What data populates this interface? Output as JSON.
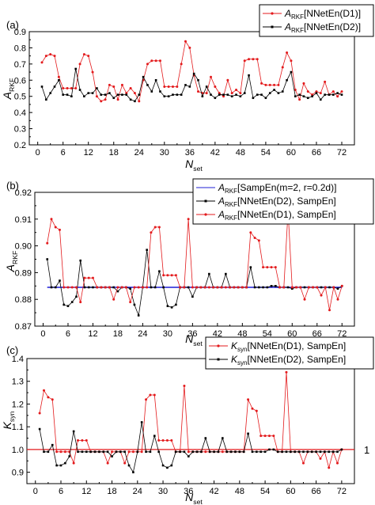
{
  "figure": {
    "panels": [
      {
        "id": "a",
        "panel_label": "(a)",
        "ylabel_main": "A",
        "ylabel_sub": "RKF",
        "xlabel_main": "N",
        "xlabel_sub": "set"
      },
      {
        "id": "b",
        "panel_label": "(b)",
        "ylabel_main": "A",
        "ylabel_sub": "RKF",
        "xlabel_main": "N",
        "xlabel_sub": "set"
      },
      {
        "id": "c",
        "panel_label": "(c)",
        "ylabel_main": "K",
        "ylabel_sub": "syn",
        "xlabel_main": "N",
        "xlabel_sub": "set",
        "ref_label": "1"
      }
    ],
    "colors": {
      "red": "#e31a1c",
      "black": "#000000",
      "blue": "#1f1fd6"
    }
  },
  "chart_data": [
    {
      "type": "line",
      "title": "(a)",
      "xlabel": "N_set",
      "ylabel": "A_RKF",
      "xlim": [
        -2,
        75
      ],
      "ylim": [
        0.2,
        0.9
      ],
      "xticks": [
        0,
        6,
        12,
        18,
        24,
        30,
        36,
        42,
        48,
        54,
        60,
        66,
        72
      ],
      "yticks": [
        0.2,
        0.3,
        0.4,
        0.5,
        0.6,
        0.7,
        0.8,
        0.9
      ],
      "legend_position": "top-right",
      "x": [
        1,
        2,
        3,
        4,
        5,
        6,
        7,
        8,
        9,
        10,
        11,
        12,
        13,
        14,
        15,
        16,
        17,
        18,
        19,
        20,
        21,
        22,
        23,
        24,
        25,
        26,
        27,
        28,
        29,
        30,
        31,
        32,
        33,
        34,
        35,
        36,
        37,
        38,
        39,
        40,
        41,
        42,
        43,
        44,
        45,
        46,
        47,
        48,
        49,
        50,
        51,
        52,
        53,
        54,
        55,
        56,
        57,
        58,
        59,
        60,
        61,
        62,
        63,
        64,
        65,
        66,
        67,
        68,
        69,
        70,
        71,
        72
      ],
      "series": [
        {
          "name": "A_RKF[NNetEn(D1)]",
          "color": "red",
          "marker": "dot",
          "values": [
            0.71,
            0.75,
            0.76,
            0.75,
            0.62,
            0.55,
            0.55,
            0.55,
            0.55,
            0.7,
            0.76,
            0.75,
            0.65,
            0.5,
            0.47,
            0.48,
            0.57,
            0.56,
            0.48,
            0.57,
            0.52,
            0.55,
            0.52,
            0.47,
            0.6,
            0.7,
            0.72,
            0.72,
            0.72,
            0.56,
            0.56,
            0.56,
            0.56,
            0.7,
            0.84,
            0.8,
            0.63,
            0.53,
            0.52,
            0.52,
            0.62,
            0.56,
            0.52,
            0.5,
            0.6,
            0.52,
            0.54,
            0.52,
            0.72,
            0.73,
            0.73,
            0.73,
            0.58,
            0.57,
            0.57,
            0.57,
            0.57,
            0.68,
            0.77,
            0.72,
            0.54,
            0.48,
            0.58,
            0.53,
            0.51,
            0.53,
            0.52,
            0.59,
            0.51,
            0.53,
            0.5,
            0.53
          ]
        },
        {
          "name": "A_RKF[NNetEn(D2)]",
          "color": "black",
          "marker": "square",
          "values": [
            0.56,
            0.48,
            0.52,
            0.56,
            0.6,
            0.51,
            0.51,
            0.5,
            0.67,
            0.54,
            0.5,
            0.52,
            0.52,
            0.55,
            0.51,
            0.51,
            0.52,
            0.49,
            0.51,
            0.51,
            0.51,
            0.48,
            0.47,
            0.51,
            0.62,
            0.57,
            0.53,
            0.6,
            0.53,
            0.5,
            0.5,
            0.51,
            0.51,
            0.51,
            0.57,
            0.56,
            0.64,
            0.6,
            0.5,
            0.56,
            0.51,
            0.49,
            0.51,
            0.51,
            0.51,
            0.5,
            0.51,
            0.5,
            0.52,
            0.63,
            0.49,
            0.51,
            0.51,
            0.49,
            0.52,
            0.54,
            0.52,
            0.53,
            0.6,
            0.65,
            0.5,
            0.51,
            0.5,
            0.49,
            0.5,
            0.52,
            0.48,
            0.51,
            0.51,
            0.51,
            0.52,
            0.51
          ]
        }
      ]
    },
    {
      "type": "line",
      "title": "(b)",
      "xlabel": "N_set",
      "ylabel": "A_RKF",
      "xlim": [
        -2,
        75
      ],
      "ylim": [
        0.87,
        0.92
      ],
      "xticks": [
        0,
        6,
        12,
        18,
        24,
        30,
        36,
        42,
        48,
        54,
        60,
        66,
        72
      ],
      "yticks": [
        0.87,
        0.88,
        0.89,
        0.9,
        0.91,
        0.92
      ],
      "legend_position": "top-right",
      "x": [
        1,
        2,
        3,
        4,
        5,
        6,
        7,
        8,
        9,
        10,
        11,
        12,
        13,
        14,
        15,
        16,
        17,
        18,
        19,
        20,
        21,
        22,
        23,
        24,
        25,
        26,
        27,
        28,
        29,
        30,
        31,
        32,
        33,
        34,
        35,
        36,
        37,
        38,
        39,
        40,
        41,
        42,
        43,
        44,
        45,
        46,
        47,
        48,
        49,
        50,
        51,
        52,
        53,
        54,
        55,
        56,
        57,
        58,
        59,
        60,
        61,
        62,
        63,
        64,
        65,
        66,
        67,
        68,
        69,
        70,
        71,
        72
      ],
      "series": [
        {
          "name": "A_RKF[SampEn(m=2, r=0.2d)]",
          "color": "blue",
          "marker": "none",
          "values": [
            0.8845,
            0.8845,
            0.8845,
            0.8845,
            0.8845,
            0.8845,
            0.8845,
            0.8845,
            0.8845,
            0.8845,
            0.8845,
            0.8845,
            0.8845,
            0.8845,
            0.8845,
            0.8845,
            0.8845,
            0.8845,
            0.8845,
            0.8845,
            0.8845,
            0.8845,
            0.8845,
            0.8845,
            0.8845,
            0.8845,
            0.8845,
            0.8845,
            0.8845,
            0.8845,
            0.8845,
            0.8845,
            0.8845,
            0.8845,
            0.8845,
            0.8845,
            0.8845,
            0.8845,
            0.8845,
            0.8845,
            0.8845,
            0.8845,
            0.8845,
            0.8845,
            0.8845,
            0.8845,
            0.8845,
            0.8845,
            0.8845,
            0.8845,
            0.8845,
            0.8845,
            0.8845,
            0.8845,
            0.8845,
            0.8845,
            0.8845,
            0.8845,
            0.8845,
            0.8845,
            0.8845,
            0.8845,
            0.8845,
            0.8845,
            0.8845,
            0.8845,
            0.8845,
            0.8845,
            0.8845,
            0.8845,
            0.8845,
            0.8845
          ]
        },
        {
          "name": "A_RKF[NNetEn(D2), SampEn]",
          "color": "black",
          "marker": "square",
          "values": [
            0.895,
            0.8845,
            0.8845,
            0.887,
            0.878,
            0.8775,
            0.879,
            0.881,
            0.8945,
            0.8845,
            0.8845,
            0.8845,
            0.8845,
            0.8845,
            0.8845,
            0.8845,
            0.8845,
            0.883,
            0.8845,
            0.8845,
            0.884,
            0.878,
            0.874,
            0.8845,
            0.8985,
            0.8845,
            0.8845,
            0.8905,
            0.8845,
            0.8775,
            0.877,
            0.878,
            0.8845,
            0.8845,
            0.8845,
            0.881,
            0.8845,
            0.8845,
            0.8845,
            0.8895,
            0.8845,
            0.8845,
            0.8845,
            0.8895,
            0.8845,
            0.8845,
            0.8845,
            0.8845,
            0.8845,
            0.892,
            0.8845,
            0.8845,
            0.8845,
            0.8845,
            0.885,
            0.885,
            0.8845,
            0.8845,
            0.8845,
            0.884,
            0.8845,
            0.8845,
            0.8845,
            0.8845,
            0.8845,
            0.8845,
            0.8845,
            0.8845,
            0.8845,
            0.8845,
            0.884,
            0.885
          ]
        },
        {
          "name": "A_RKF[NNetEn(D1), SampEn]",
          "color": "red",
          "marker": "dot",
          "values": [
            0.901,
            0.91,
            0.907,
            0.906,
            0.8845,
            0.8845,
            0.8845,
            0.8845,
            0.879,
            0.888,
            0.888,
            0.888,
            0.8845,
            0.8845,
            0.8845,
            0.8845,
            0.88,
            0.8845,
            0.8845,
            0.8845,
            0.879,
            0.8845,
            0.8845,
            0.8845,
            0.8845,
            0.905,
            0.907,
            0.907,
            0.889,
            0.889,
            0.889,
            0.889,
            0.8845,
            0.8845,
            0.91,
            0.8845,
            0.8845,
            0.8845,
            0.8845,
            0.8845,
            0.8845,
            0.8845,
            0.8845,
            0.8845,
            0.8845,
            0.8845,
            0.8845,
            0.8845,
            0.8845,
            0.905,
            0.903,
            0.902,
            0.892,
            0.892,
            0.892,
            0.892,
            0.8845,
            0.8845,
            0.913,
            0.8845,
            0.8845,
            0.8845,
            0.88,
            0.8845,
            0.8845,
            0.8845,
            0.8815,
            0.8845,
            0.876,
            0.8845,
            0.88,
            0.885
          ]
        }
      ]
    },
    {
      "type": "line",
      "title": "(c)",
      "xlabel": "N_set",
      "ylabel": "K_syn",
      "xlim": [
        -2,
        75
      ],
      "ylim": [
        0.85,
        1.4
      ],
      "xticks": [
        0,
        6,
        12,
        18,
        24,
        30,
        36,
        42,
        48,
        54,
        60,
        66,
        72
      ],
      "yticks": [
        0.9,
        1.0,
        1.1,
        1.2,
        1.3,
        1.4
      ],
      "legend_position": "top-right",
      "reference_line": {
        "y": 1.0,
        "label": "1",
        "color": "red"
      },
      "x": [
        1,
        2,
        3,
        4,
        5,
        6,
        7,
        8,
        9,
        10,
        11,
        12,
        13,
        14,
        15,
        16,
        17,
        18,
        19,
        20,
        21,
        22,
        23,
        24,
        25,
        26,
        27,
        28,
        29,
        30,
        31,
        32,
        33,
        34,
        35,
        36,
        37,
        38,
        39,
        40,
        41,
        42,
        43,
        44,
        45,
        46,
        47,
        48,
        49,
        50,
        51,
        52,
        53,
        54,
        55,
        56,
        57,
        58,
        59,
        60,
        61,
        62,
        63,
        64,
        65,
        66,
        67,
        68,
        69,
        70,
        71,
        72
      ],
      "series": [
        {
          "name": "K_syn[NNetEn(D1), SampEn]",
          "color": "red",
          "marker": "dot",
          "values": [
            1.16,
            1.26,
            1.23,
            1.22,
            0.99,
            0.99,
            0.99,
            0.99,
            0.94,
            1.04,
            1.04,
            1.04,
            0.99,
            0.99,
            0.99,
            0.99,
            0.94,
            0.99,
            0.99,
            0.99,
            0.94,
            0.99,
            0.99,
            0.99,
            0.99,
            1.22,
            1.24,
            1.24,
            1.04,
            1.04,
            1.04,
            1.04,
            0.99,
            0.99,
            1.28,
            0.99,
            0.99,
            0.99,
            0.99,
            0.99,
            0.99,
            0.99,
            0.99,
            0.99,
            0.99,
            0.99,
            0.99,
            0.99,
            0.99,
            1.22,
            1.18,
            1.17,
            1.06,
            1.06,
            1.06,
            1.06,
            0.99,
            0.99,
            1.34,
            0.99,
            0.99,
            0.99,
            0.94,
            0.99,
            0.99,
            0.99,
            0.96,
            0.99,
            0.92,
            0.99,
            0.94,
            1.0
          ]
        },
        {
          "name": "K_syn[NNetEn(D2), SampEn]",
          "color": "black",
          "marker": "square",
          "values": [
            1.09,
            0.99,
            0.99,
            1.02,
            0.93,
            0.93,
            0.94,
            0.97,
            1.08,
            0.99,
            0.99,
            0.99,
            0.99,
            0.99,
            0.99,
            0.99,
            0.99,
            0.97,
            0.99,
            0.99,
            0.99,
            0.93,
            0.9,
            0.99,
            1.12,
            0.99,
            0.99,
            1.06,
            0.99,
            0.93,
            0.92,
            0.93,
            0.99,
            0.99,
            0.99,
            0.97,
            0.99,
            0.99,
            0.99,
            1.05,
            0.99,
            0.99,
            0.99,
            1.05,
            0.99,
            0.99,
            0.99,
            0.99,
            0.99,
            1.07,
            0.99,
            0.99,
            0.99,
            0.99,
            1.0,
            1.0,
            0.99,
            0.99,
            0.99,
            0.99,
            0.99,
            0.99,
            0.99,
            0.99,
            0.99,
            0.99,
            0.99,
            0.99,
            0.99,
            0.99,
            0.99,
            1.0
          ]
        }
      ]
    }
  ]
}
